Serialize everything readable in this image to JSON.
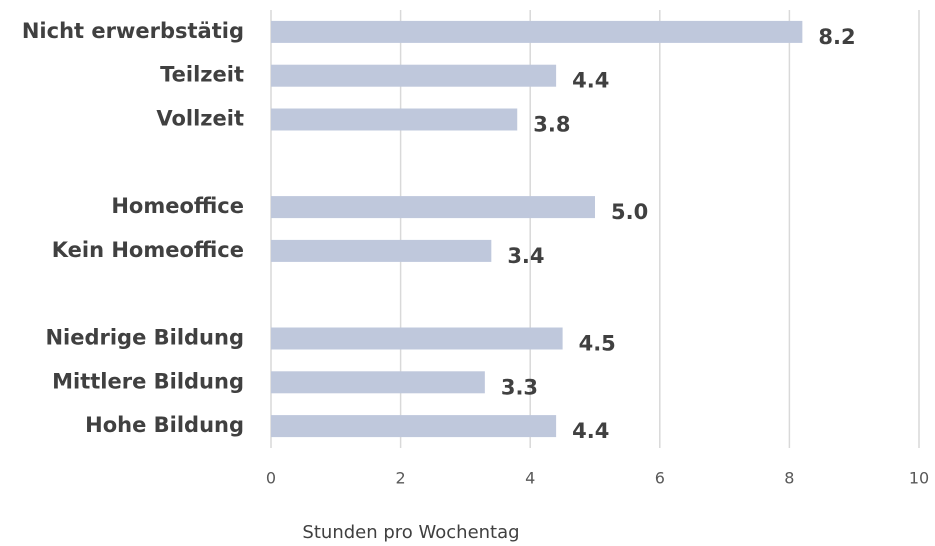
{
  "chart_data": {
    "type": "bar",
    "orientation": "horizontal",
    "categories": [
      "Nicht erwerbstätig",
      "Teilzeit",
      "Vollzeit",
      null,
      "Homeoffice",
      "Kein Homeoffice",
      null,
      "Niedrige Bildung",
      "Mittlere Bildung",
      "Hohe Bildung"
    ],
    "values": [
      8.2,
      4.4,
      3.8,
      null,
      5.0,
      3.4,
      null,
      4.5,
      3.3,
      4.4
    ],
    "value_labels": [
      "8.2",
      "4.4",
      "3.8",
      null,
      "5.0",
      "3.4",
      null,
      "4.5",
      "3.3",
      "4.4"
    ],
    "color": "#bfc8dc",
    "xlim": [
      0,
      10
    ],
    "xticks": [
      0,
      2,
      4,
      6,
      8,
      10
    ],
    "grid": true,
    "x_label": "Stunden pro Wochentag"
  }
}
